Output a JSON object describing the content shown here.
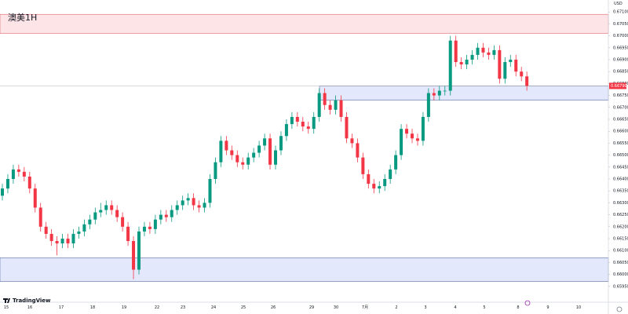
{
  "chart_data": {
    "type": "candlestick",
    "title": "澳美1H",
    "currency": "USD",
    "brand": "TradingView",
    "up_color": "#089981",
    "down_color": "#f23645",
    "ylim": [
      0.659,
      0.6715
    ],
    "yticks": [
      {
        "value": 0.6595,
        "label": "0.65950"
      },
      {
        "value": 0.66,
        "label": "0.66000"
      },
      {
        "value": 0.6605,
        "label": "0.66050"
      },
      {
        "value": 0.661,
        "label": "0.66100"
      },
      {
        "value": 0.6615,
        "label": "0.66150"
      },
      {
        "value": 0.662,
        "label": "0.66200"
      },
      {
        "value": 0.6625,
        "label": "0.66250"
      },
      {
        "value": 0.663,
        "label": "0.66300"
      },
      {
        "value": 0.6635,
        "label": "0.66350"
      },
      {
        "value": 0.664,
        "label": "0.66400"
      },
      {
        "value": 0.6645,
        "label": "0.66450"
      },
      {
        "value": 0.665,
        "label": "0.66500"
      },
      {
        "value": 0.6655,
        "label": "0.66550"
      },
      {
        "value": 0.666,
        "label": "0.66600"
      },
      {
        "value": 0.6665,
        "label": "0.66650"
      },
      {
        "value": 0.667,
        "label": "0.66700"
      },
      {
        "value": 0.6675,
        "label": "0.66750"
      },
      {
        "value": 0.668,
        "label": "0.66800"
      },
      {
        "value": 0.6685,
        "label": "0.66850"
      },
      {
        "value": 0.669,
        "label": "0.66900"
      },
      {
        "value": 0.6695,
        "label": "0.66950"
      },
      {
        "value": 0.67,
        "label": "0.67000"
      },
      {
        "value": 0.6705,
        "label": "0.67050"
      },
      {
        "value": 0.671,
        "label": "0.67100"
      }
    ],
    "x_labels": [
      "15",
      "16",
      "17",
      "18",
      "19",
      "22",
      "23",
      "24",
      "25",
      "26",
      "29",
      "30",
      "7月",
      "2",
      "3",
      "4",
      "5",
      "8",
      "9",
      "10"
    ],
    "last_price": {
      "value": 0.6679,
      "label": "0.66790"
    },
    "zones": [
      {
        "top": 0.6709,
        "bottom": 0.6701,
        "color": "#fde4e6",
        "border": "#e06670"
      },
      {
        "top": 0.6679,
        "bottom": 0.6673,
        "color": "#e3e8fd",
        "border": "#5c6f9c"
      },
      {
        "top": 0.6607,
        "bottom": 0.6597,
        "color": "#e3e8fd",
        "border": "#5c6f9c"
      }
    ],
    "ohlc": [
      [
        0.6633,
        0.6638,
        0.6631,
        0.6636
      ],
      [
        0.6636,
        0.6642,
        0.6634,
        0.664
      ],
      [
        0.664,
        0.6646,
        0.6638,
        0.6644
      ],
      [
        0.6644,
        0.6646,
        0.6641,
        0.6643
      ],
      [
        0.6643,
        0.6645,
        0.6639,
        0.6641
      ],
      [
        0.6641,
        0.6643,
        0.6634,
        0.6636
      ],
      [
        0.6636,
        0.6638,
        0.6626,
        0.6628
      ],
      [
        0.6628,
        0.663,
        0.6618,
        0.662
      ],
      [
        0.662,
        0.6622,
        0.6615,
        0.6617
      ],
      [
        0.6617,
        0.6619,
        0.6612,
        0.6614
      ],
      [
        0.6614,
        0.6616,
        0.6608,
        0.6613
      ],
      [
        0.6613,
        0.6617,
        0.6611,
        0.6615
      ],
      [
        0.6615,
        0.6617,
        0.6611,
        0.6613
      ],
      [
        0.6613,
        0.6619,
        0.6611,
        0.6617
      ],
      [
        0.6617,
        0.662,
        0.6615,
        0.6618
      ],
      [
        0.6618,
        0.6623,
        0.6616,
        0.6621
      ],
      [
        0.6621,
        0.6625,
        0.6619,
        0.6623
      ],
      [
        0.6623,
        0.6628,
        0.6621,
        0.6626
      ],
      [
        0.6626,
        0.663,
        0.6624,
        0.6627
      ],
      [
        0.6627,
        0.6631,
        0.6625,
        0.6629
      ],
      [
        0.6629,
        0.6631,
        0.6625,
        0.6627
      ],
      [
        0.6627,
        0.6629,
        0.6622,
        0.6624
      ],
      [
        0.6624,
        0.6626,
        0.6618,
        0.662
      ],
      [
        0.662,
        0.6622,
        0.6612,
        0.6614
      ],
      [
        0.6614,
        0.6616,
        0.6598,
        0.6602
      ],
      [
        0.6602,
        0.662,
        0.66,
        0.6618
      ],
      [
        0.6618,
        0.6622,
        0.6616,
        0.662
      ],
      [
        0.662,
        0.6622,
        0.6617,
        0.6619
      ],
      [
        0.6619,
        0.6625,
        0.6617,
        0.6623
      ],
      [
        0.6623,
        0.6627,
        0.6621,
        0.6625
      ],
      [
        0.6625,
        0.6627,
        0.6622,
        0.6624
      ],
      [
        0.6624,
        0.6629,
        0.6622,
        0.6627
      ],
      [
        0.6627,
        0.6631,
        0.6625,
        0.6629
      ],
      [
        0.6629,
        0.6633,
        0.6627,
        0.6631
      ],
      [
        0.6631,
        0.6634,
        0.6629,
        0.6632
      ],
      [
        0.6632,
        0.6634,
        0.6627,
        0.6629
      ],
      [
        0.6629,
        0.6631,
        0.6626,
        0.6628
      ],
      [
        0.6628,
        0.6632,
        0.6626,
        0.663
      ],
      [
        0.663,
        0.6642,
        0.6628,
        0.664
      ],
      [
        0.664,
        0.6649,
        0.6638,
        0.6647
      ],
      [
        0.6647,
        0.6658,
        0.6645,
        0.6656
      ],
      [
        0.6656,
        0.6658,
        0.665,
        0.6652
      ],
      [
        0.6652,
        0.6654,
        0.6648,
        0.665
      ],
      [
        0.665,
        0.6652,
        0.6645,
        0.6647
      ],
      [
        0.6647,
        0.6649,
        0.6644,
        0.6646
      ],
      [
        0.6646,
        0.6651,
        0.6644,
        0.6649
      ],
      [
        0.6649,
        0.6653,
        0.6647,
        0.6651
      ],
      [
        0.6651,
        0.6656,
        0.6649,
        0.6654
      ],
      [
        0.6654,
        0.6659,
        0.6652,
        0.6657
      ],
      [
        0.6657,
        0.6659,
        0.6644,
        0.6646
      ],
      [
        0.6646,
        0.6654,
        0.6644,
        0.6652
      ],
      [
        0.6652,
        0.666,
        0.665,
        0.6658
      ],
      [
        0.6658,
        0.6665,
        0.6656,
        0.6663
      ],
      [
        0.6663,
        0.6668,
        0.6661,
        0.6666
      ],
      [
        0.6666,
        0.6668,
        0.6662,
        0.6664
      ],
      [
        0.6664,
        0.6666,
        0.666,
        0.6662
      ],
      [
        0.6662,
        0.6664,
        0.6659,
        0.6661
      ],
      [
        0.6661,
        0.6668,
        0.6659,
        0.6666
      ],
      [
        0.6666,
        0.6678,
        0.6664,
        0.6676
      ],
      [
        0.6676,
        0.6678,
        0.6669,
        0.6671
      ],
      [
        0.6671,
        0.6673,
        0.6667,
        0.6669
      ],
      [
        0.6669,
        0.6675,
        0.6667,
        0.6673
      ],
      [
        0.6673,
        0.6675,
        0.6664,
        0.6666
      ],
      [
        0.6666,
        0.6668,
        0.6655,
        0.6657
      ],
      [
        0.6657,
        0.6659,
        0.6653,
        0.6655
      ],
      [
        0.6655,
        0.6657,
        0.6647,
        0.6649
      ],
      [
        0.6649,
        0.6651,
        0.664,
        0.6642
      ],
      [
        0.6642,
        0.6644,
        0.6636,
        0.6638
      ],
      [
        0.6638,
        0.664,
        0.6634,
        0.6636
      ],
      [
        0.6636,
        0.6639,
        0.6634,
        0.6637
      ],
      [
        0.6637,
        0.6642,
        0.6635,
        0.664
      ],
      [
        0.664,
        0.6646,
        0.6638,
        0.6644
      ],
      [
        0.6644,
        0.6652,
        0.6642,
        0.665
      ],
      [
        0.665,
        0.6663,
        0.6648,
        0.6661
      ],
      [
        0.6661,
        0.6663,
        0.6657,
        0.6659
      ],
      [
        0.6659,
        0.6661,
        0.6655,
        0.6657
      ],
      [
        0.6657,
        0.6659,
        0.6654,
        0.6656
      ],
      [
        0.6656,
        0.6668,
        0.6654,
        0.6666
      ],
      [
        0.6666,
        0.6678,
        0.6664,
        0.6676
      ],
      [
        0.6676,
        0.6678,
        0.6673,
        0.6675
      ],
      [
        0.6675,
        0.6679,
        0.6673,
        0.6677
      ],
      [
        0.6677,
        0.6679,
        0.6675,
        0.6677
      ],
      [
        0.6677,
        0.67,
        0.6675,
        0.6698
      ],
      [
        0.6698,
        0.67,
        0.6687,
        0.6689
      ],
      [
        0.6689,
        0.6691,
        0.6686,
        0.6688
      ],
      [
        0.6688,
        0.6692,
        0.6686,
        0.669
      ],
      [
        0.669,
        0.6694,
        0.6688,
        0.6692
      ],
      [
        0.6692,
        0.6697,
        0.669,
        0.6695
      ],
      [
        0.6695,
        0.6697,
        0.6691,
        0.6693
      ],
      [
        0.6693,
        0.6695,
        0.669,
        0.6692
      ],
      [
        0.6692,
        0.6696,
        0.669,
        0.6694
      ],
      [
        0.6694,
        0.6696,
        0.668,
        0.6682
      ],
      [
        0.6682,
        0.6691,
        0.668,
        0.6689
      ],
      [
        0.6689,
        0.6692,
        0.6687,
        0.669
      ],
      [
        0.669,
        0.6692,
        0.6683,
        0.6685
      ],
      [
        0.6685,
        0.6687,
        0.6681,
        0.6683
      ],
      [
        0.6683,
        0.6685,
        0.6677,
        0.6679
      ]
    ]
  }
}
